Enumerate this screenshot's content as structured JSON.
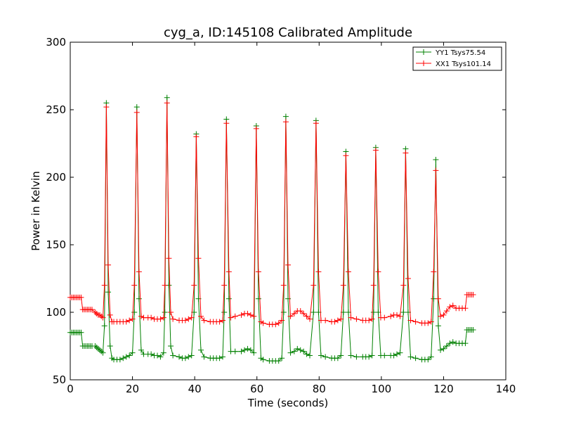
{
  "chart_data": {
    "type": "line",
    "title": "cyg_a, ID:145108 Calibrated Amplitude",
    "xlabel": "Time (seconds)",
    "ylabel": "Power in Kelvin",
    "xlim": [
      0,
      140
    ],
    "ylim": [
      50,
      300
    ],
    "xticks": [
      0,
      20,
      40,
      60,
      80,
      100,
      120,
      140
    ],
    "yticks": [
      50,
      100,
      150,
      200,
      250,
      300
    ],
    "legend_position": "top-right",
    "peak_times": [
      11.6,
      21.4,
      31.1,
      40.5,
      50.2,
      59.8,
      69.3,
      79.0,
      88.6,
      98.2,
      107.8,
      117.5
    ],
    "series": [
      {
        "name": "YY1 Tsys75.54",
        "color": "#008000",
        "marker": "+",
        "peaks": [
          255,
          252,
          259,
          232,
          243,
          238,
          245,
          242,
          219,
          222,
          221,
          213
        ],
        "points": [
          [
            0,
            85
          ],
          [
            0.5,
            85
          ],
          [
            1,
            85
          ],
          [
            1.5,
            85
          ],
          [
            2,
            85
          ],
          [
            2.5,
            85
          ],
          [
            3,
            85
          ],
          [
            3.5,
            85
          ],
          [
            4,
            75
          ],
          [
            4.5,
            75
          ],
          [
            5,
            75
          ],
          [
            5.5,
            75
          ],
          [
            6,
            75
          ],
          [
            6.5,
            75
          ],
          [
            7,
            75
          ],
          [
            8,
            75
          ],
          [
            8.5,
            74
          ],
          [
            9,
            73
          ],
          [
            9.5,
            72
          ],
          [
            10,
            71
          ],
          [
            10.5,
            70
          ],
          [
            11,
            90
          ],
          [
            11.6,
            255
          ],
          [
            12.2,
            115
          ],
          [
            12.8,
            75
          ],
          [
            13.4,
            66
          ],
          [
            14,
            65
          ],
          [
            15,
            65
          ],
          [
            16,
            65
          ],
          [
            17,
            66
          ],
          [
            18,
            67
          ],
          [
            19,
            68
          ],
          [
            20,
            70
          ],
          [
            20.6,
            100
          ],
          [
            21.4,
            252
          ],
          [
            22.1,
            110
          ],
          [
            22.8,
            72
          ],
          [
            23.6,
            69
          ],
          [
            25,
            69
          ],
          [
            26,
            69
          ],
          [
            27,
            68
          ],
          [
            28,
            68
          ],
          [
            29,
            67
          ],
          [
            30,
            70
          ],
          [
            30.4,
            100
          ],
          [
            31.1,
            259
          ],
          [
            31.7,
            120
          ],
          [
            32.3,
            75
          ],
          [
            33,
            68
          ],
          [
            35,
            67
          ],
          [
            36,
            66
          ],
          [
            37,
            66
          ],
          [
            38,
            67
          ],
          [
            39,
            68
          ],
          [
            39.8,
            100
          ],
          [
            40.5,
            232
          ],
          [
            41.2,
            110
          ],
          [
            42,
            72
          ],
          [
            43,
            67
          ],
          [
            45,
            66
          ],
          [
            46,
            66
          ],
          [
            47,
            66
          ],
          [
            48,
            66
          ],
          [
            49,
            67
          ],
          [
            49.5,
            100
          ],
          [
            50.2,
            243
          ],
          [
            51,
            110
          ],
          [
            51.6,
            71
          ],
          [
            53,
            71
          ],
          [
            55,
            71
          ],
          [
            56,
            72
          ],
          [
            57,
            73
          ],
          [
            58,
            72
          ],
          [
            59,
            70
          ],
          [
            59.8,
            238
          ],
          [
            60.5,
            110
          ],
          [
            61.3,
            66
          ],
          [
            62,
            65
          ],
          [
            64,
            64
          ],
          [
            65,
            64
          ],
          [
            66,
            64
          ],
          [
            67,
            64
          ],
          [
            68,
            66
          ],
          [
            68.6,
            100
          ],
          [
            69.3,
            245
          ],
          [
            70,
            110
          ],
          [
            70.8,
            70
          ],
          [
            72,
            71
          ],
          [
            73,
            73
          ],
          [
            74,
            72
          ],
          [
            75,
            71
          ],
          [
            76,
            69
          ],
          [
            77,
            68
          ],
          [
            78.2,
            100
          ],
          [
            79,
            242
          ],
          [
            79.8,
            100
          ],
          [
            80.6,
            68
          ],
          [
            82,
            67
          ],
          [
            84,
            66
          ],
          [
            85,
            66
          ],
          [
            86,
            66
          ],
          [
            87,
            68
          ],
          [
            87.8,
            100
          ],
          [
            88.6,
            219
          ],
          [
            89.4,
            100
          ],
          [
            90.2,
            68
          ],
          [
            92,
            67
          ],
          [
            94,
            67
          ],
          [
            95,
            67
          ],
          [
            96,
            67
          ],
          [
            97,
            68
          ],
          [
            97.5,
            100
          ],
          [
            98.2,
            222
          ],
          [
            99,
            100
          ],
          [
            99.8,
            68
          ],
          [
            101,
            68
          ],
          [
            103,
            68
          ],
          [
            104,
            68
          ],
          [
            105,
            69
          ],
          [
            106,
            70
          ],
          [
            107.1,
            100
          ],
          [
            107.8,
            221
          ],
          [
            108.6,
            100
          ],
          [
            109.4,
            67
          ],
          [
            111,
            66
          ],
          [
            113,
            65
          ],
          [
            114,
            65
          ],
          [
            115,
            65
          ],
          [
            116,
            67
          ],
          [
            116.8,
            110
          ],
          [
            117.5,
            213
          ],
          [
            118.3,
            90
          ],
          [
            119,
            72
          ],
          [
            120,
            73
          ],
          [
            121,
            75
          ],
          [
            122,
            77
          ],
          [
            123,
            78
          ],
          [
            124,
            77
          ],
          [
            125,
            77
          ],
          [
            126,
            77
          ],
          [
            127,
            77
          ],
          [
            127.5,
            87
          ],
          [
            128,
            87
          ],
          [
            128.5,
            87
          ],
          [
            129,
            87
          ],
          [
            129.5,
            87
          ]
        ]
      },
      {
        "name": "XX1 Tsys101.14",
        "color": "#ff0000",
        "marker": "+",
        "peaks": [
          252,
          248,
          255,
          230,
          240,
          236,
          241,
          240,
          216,
          220,
          218,
          205
        ],
        "points": [
          [
            0,
            111
          ],
          [
            0.5,
            111
          ],
          [
            1,
            111
          ],
          [
            1.5,
            111
          ],
          [
            2,
            111
          ],
          [
            2.5,
            111
          ],
          [
            3,
            111
          ],
          [
            3.5,
            111
          ],
          [
            4,
            102
          ],
          [
            4.5,
            102
          ],
          [
            5,
            102
          ],
          [
            5.5,
            102
          ],
          [
            6,
            102
          ],
          [
            6.5,
            102
          ],
          [
            7,
            102
          ],
          [
            8,
            100
          ],
          [
            8.5,
            99
          ],
          [
            9,
            98
          ],
          [
            9.5,
            98
          ],
          [
            10,
            97
          ],
          [
            10.5,
            96
          ],
          [
            11,
            120
          ],
          [
            11.6,
            252
          ],
          [
            12.2,
            135
          ],
          [
            12.8,
            98
          ],
          [
            13.4,
            93
          ],
          [
            14,
            93
          ],
          [
            15,
            93
          ],
          [
            16,
            93
          ],
          [
            17,
            93
          ],
          [
            18,
            93
          ],
          [
            19,
            94
          ],
          [
            20,
            95
          ],
          [
            20.6,
            120
          ],
          [
            21.4,
            248
          ],
          [
            22.1,
            130
          ],
          [
            22.8,
            97
          ],
          [
            23.6,
            96
          ],
          [
            25,
            96
          ],
          [
            26,
            96
          ],
          [
            27,
            95
          ],
          [
            28,
            95
          ],
          [
            29,
            95
          ],
          [
            30,
            96
          ],
          [
            30.4,
            120
          ],
          [
            31.1,
            255
          ],
          [
            31.7,
            140
          ],
          [
            32.3,
            100
          ],
          [
            33,
            95
          ],
          [
            35,
            94
          ],
          [
            36,
            94
          ],
          [
            37,
            94
          ],
          [
            38,
            95
          ],
          [
            39,
            96
          ],
          [
            39.8,
            120
          ],
          [
            40.5,
            230
          ],
          [
            41.2,
            140
          ],
          [
            42,
            97
          ],
          [
            43,
            94
          ],
          [
            45,
            93
          ],
          [
            46,
            93
          ],
          [
            47,
            93
          ],
          [
            48,
            93
          ],
          [
            49,
            94
          ],
          [
            49.5,
            120
          ],
          [
            50.2,
            240
          ],
          [
            51,
            130
          ],
          [
            51.6,
            96
          ],
          [
            53,
            97
          ],
          [
            55,
            98
          ],
          [
            56,
            99
          ],
          [
            57,
            99
          ],
          [
            58,
            98
          ],
          [
            59,
            97
          ],
          [
            59.8,
            236
          ],
          [
            60.5,
            130
          ],
          [
            61.3,
            93
          ],
          [
            62,
            92
          ],
          [
            64,
            91
          ],
          [
            65,
            91
          ],
          [
            66,
            91
          ],
          [
            67,
            92
          ],
          [
            68,
            94
          ],
          [
            68.6,
            120
          ],
          [
            69.3,
            241
          ],
          [
            70,
            135
          ],
          [
            70.8,
            97
          ],
          [
            72,
            99
          ],
          [
            73,
            101
          ],
          [
            74,
            101
          ],
          [
            75,
            99
          ],
          [
            76,
            97
          ],
          [
            77,
            95
          ],
          [
            78.2,
            120
          ],
          [
            79,
            240
          ],
          [
            79.8,
            130
          ],
          [
            80.6,
            94
          ],
          [
            82,
            94
          ],
          [
            84,
            93
          ],
          [
            85,
            93
          ],
          [
            86,
            94
          ],
          [
            87,
            95
          ],
          [
            87.8,
            120
          ],
          [
            88.6,
            216
          ],
          [
            89.4,
            130
          ],
          [
            90.2,
            96
          ],
          [
            92,
            95
          ],
          [
            94,
            94
          ],
          [
            95,
            94
          ],
          [
            96,
            94
          ],
          [
            97,
            95
          ],
          [
            97.5,
            120
          ],
          [
            98.2,
            220
          ],
          [
            99,
            130
          ],
          [
            99.8,
            96
          ],
          [
            101,
            96
          ],
          [
            103,
            97
          ],
          [
            104,
            98
          ],
          [
            105,
            98
          ],
          [
            106,
            97
          ],
          [
            107.1,
            120
          ],
          [
            107.8,
            218
          ],
          [
            108.6,
            125
          ],
          [
            109.4,
            94
          ],
          [
            111,
            93
          ],
          [
            113,
            92
          ],
          [
            114,
            92
          ],
          [
            115,
            92
          ],
          [
            116,
            93
          ],
          [
            116.8,
            130
          ],
          [
            117.5,
            205
          ],
          [
            118.3,
            110
          ],
          [
            119,
            97
          ],
          [
            120,
            98
          ],
          [
            121,
            101
          ],
          [
            122,
            104
          ],
          [
            123,
            105
          ],
          [
            124,
            103
          ],
          [
            125,
            103
          ],
          [
            126,
            103
          ],
          [
            127,
            103
          ],
          [
            127.5,
            113
          ],
          [
            128,
            113
          ],
          [
            128.5,
            113
          ],
          [
            129,
            113
          ],
          [
            129.5,
            113
          ]
        ]
      }
    ]
  }
}
